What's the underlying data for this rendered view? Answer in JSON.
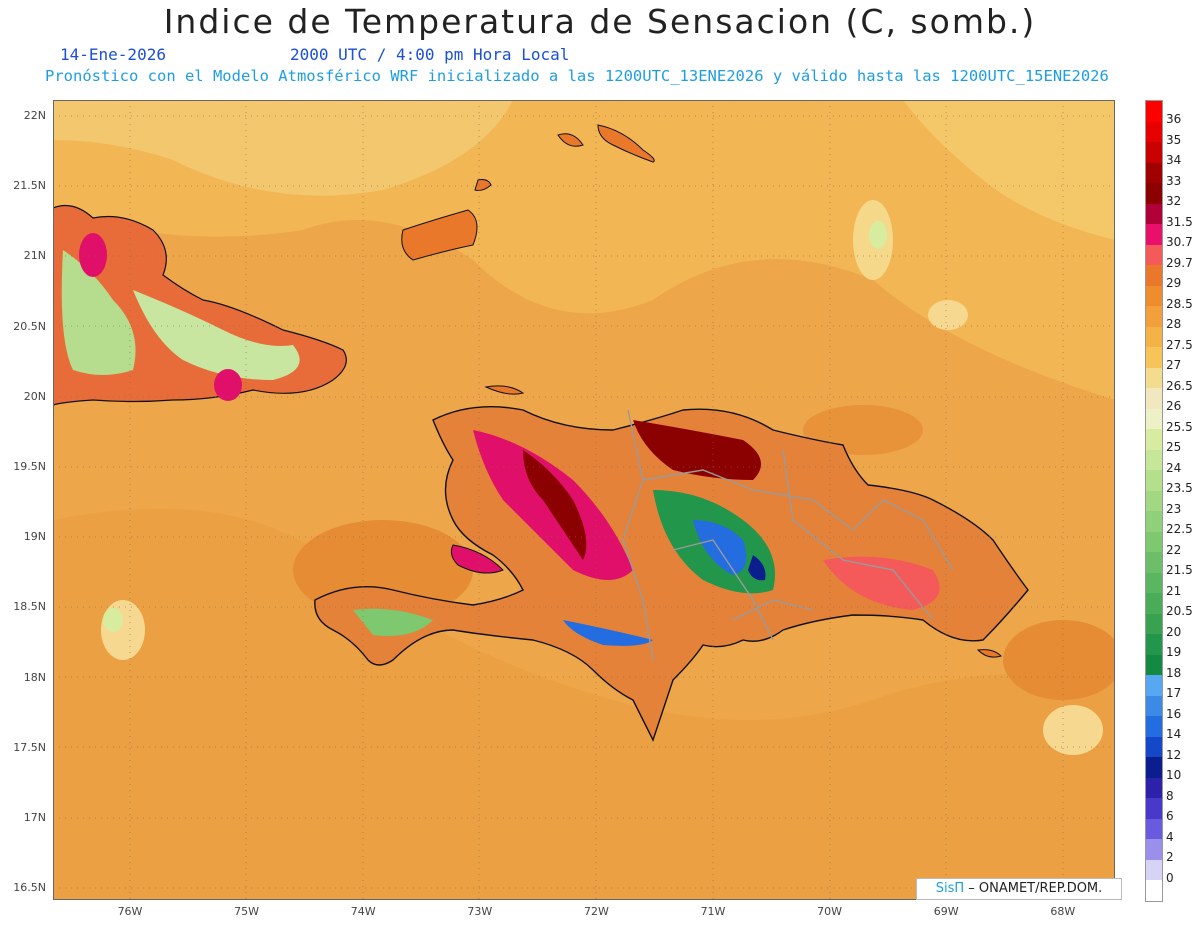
{
  "header": {
    "title": "Indice de Temperatura de Sensacion (C, somb.)",
    "date": "14-Ene-2026",
    "time": "2000 UTC / 4:00 pm Hora Local",
    "model_info": "Pronóstico con el Modelo Atmosférico WRF inicializado a las 1200UTC_13ENE2026 y válido hasta las  1200UTC_15ENE2026"
  },
  "axes": {
    "lat_labels": [
      "22N",
      "21.5N",
      "21N",
      "20.5N",
      "20N",
      "19.5N",
      "19N",
      "18.5N",
      "18N",
      "17.5N",
      "17N",
      "16.5N"
    ],
    "lon_labels": [
      "76W",
      "75W",
      "74W",
      "73W",
      "72W",
      "71W",
      "70W",
      "69W",
      "68W"
    ]
  },
  "colorbar": {
    "labels": [
      "36",
      "35",
      "34",
      "33",
      "32",
      "31.5",
      "30.7",
      "29.7",
      "29",
      "28.5",
      "28",
      "27.5",
      "27",
      "26.5",
      "26",
      "25.5",
      "25",
      "24",
      "23.5",
      "23",
      "22.5",
      "22",
      "21.5",
      "21",
      "20.5",
      "20",
      "19",
      "18",
      "17",
      "16",
      "14",
      "12",
      "10",
      "8",
      "6",
      "4",
      "2",
      "0"
    ],
    "colors": [
      "#ff0000",
      "#e60000",
      "#c80000",
      "#a00000",
      "#8b0000",
      "#b0003a",
      "#e8106a",
      "#f55a5a",
      "#e9782a",
      "#ee8c2e",
      "#f1a03c",
      "#f5b246",
      "#f7c45a",
      "#f4dc8e",
      "#f1e8c0",
      "#eef0c8",
      "#d8eca0",
      "#c6e79a",
      "#b4e08c",
      "#a2d882",
      "#90d07a",
      "#7ec870",
      "#6cbf68",
      "#5ab660",
      "#48ac58",
      "#38a250",
      "#22964a",
      "#128a42",
      "#56a8f2",
      "#3b8ae6",
      "#236de0",
      "#1548c8",
      "#0a1e8e",
      "#2c21a8",
      "#4a39c8",
      "#6a5ae0",
      "#9a90ec",
      "#d6d3f6"
    ]
  },
  "credit": {
    "brand": "SisΠ",
    "text": "– ONAMET/REP.DOM."
  }
}
